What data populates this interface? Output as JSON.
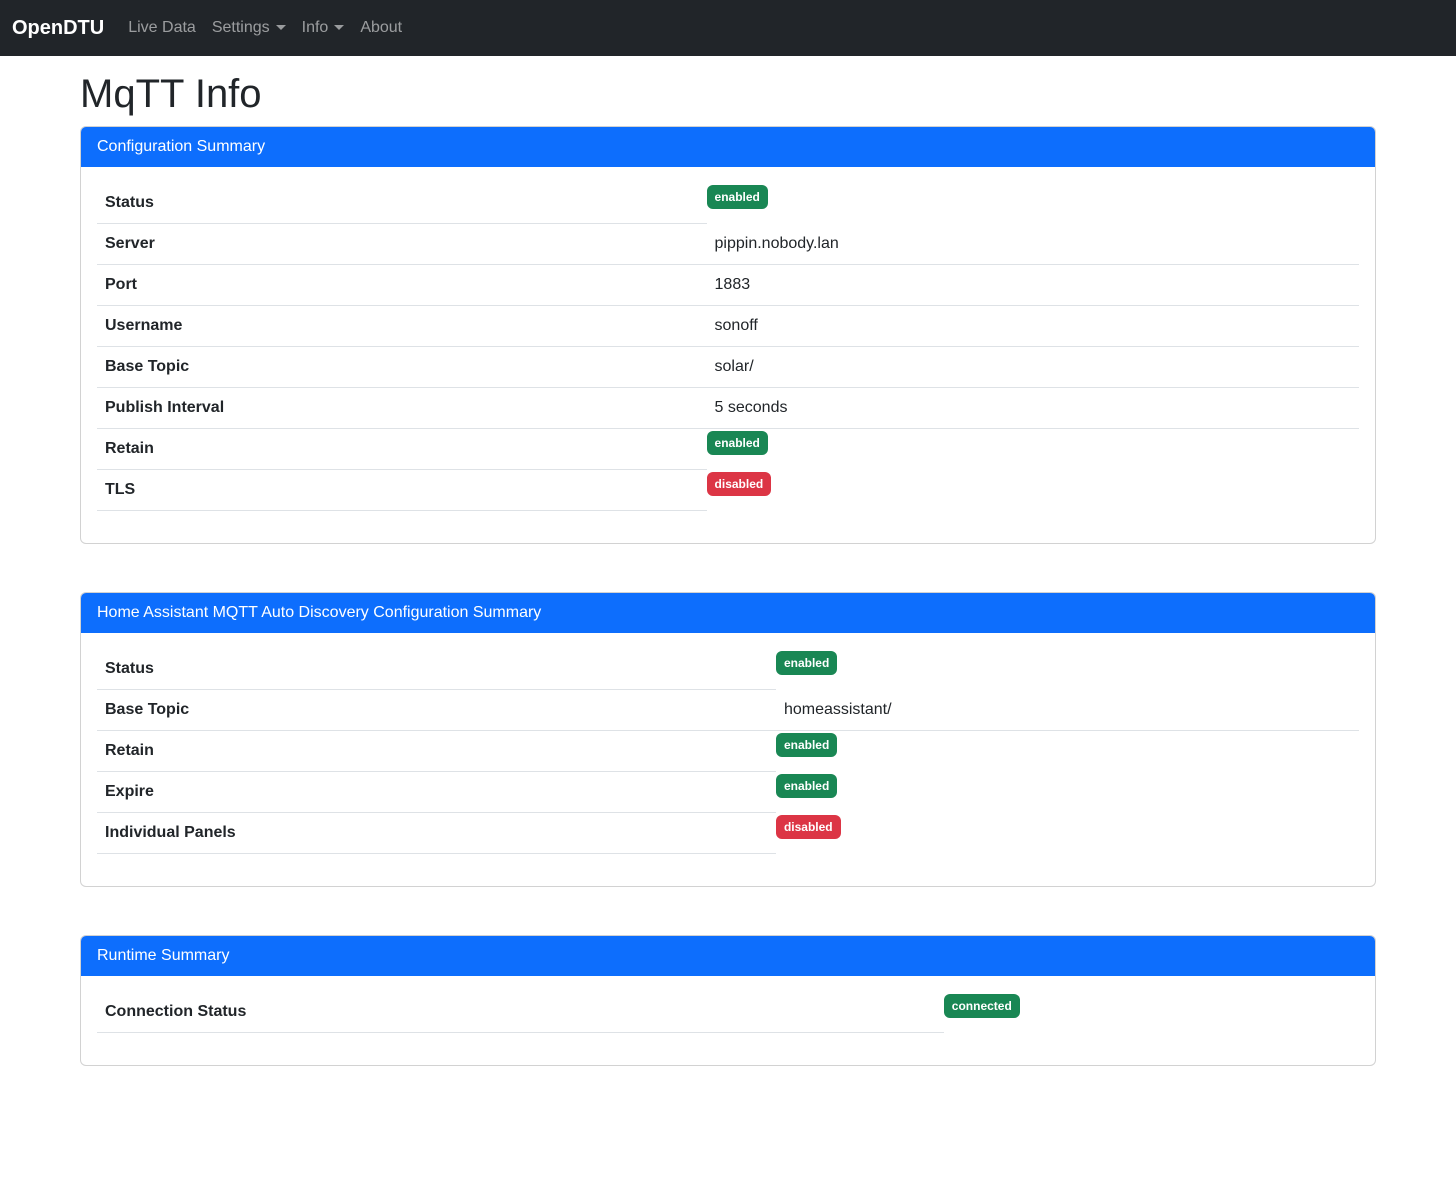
{
  "navbar": {
    "brand": "OpenDTU",
    "items": [
      {
        "label": "Live Data",
        "has_dropdown": false
      },
      {
        "label": "Settings",
        "has_dropdown": true
      },
      {
        "label": "Info",
        "has_dropdown": true
      },
      {
        "label": "About",
        "has_dropdown": false
      }
    ]
  },
  "page_title": "MqTT Info",
  "colors": {
    "navbar_bg": "#212529",
    "primary": "#0d6efd",
    "success": "#198754",
    "danger": "#dc3545",
    "table_border": "#dee2e6"
  },
  "cards": [
    {
      "title": "Configuration Summary",
      "rows": [
        {
          "label": "Status",
          "type": "badge",
          "value": "enabled",
          "variant": "success"
        },
        {
          "label": "Server",
          "type": "text",
          "value": "pippin.nobody.lan"
        },
        {
          "label": "Port",
          "type": "text",
          "value": "1883"
        },
        {
          "label": "Username",
          "type": "text",
          "value": "sonoff"
        },
        {
          "label": "Base Topic",
          "type": "text",
          "value": "solar/"
        },
        {
          "label": "Publish Interval",
          "type": "text",
          "value": "5 seconds"
        },
        {
          "label": "Retain",
          "type": "badge",
          "value": "enabled",
          "variant": "success"
        },
        {
          "label": "TLS",
          "type": "badge",
          "value": "disabled",
          "variant": "danger"
        }
      ]
    },
    {
      "title": "Home Assistant MQTT Auto Discovery Configuration Summary",
      "rows": [
        {
          "label": "Status",
          "type": "badge",
          "value": "enabled",
          "variant": "success"
        },
        {
          "label": "Base Topic",
          "type": "text",
          "value": "homeassistant/"
        },
        {
          "label": "Retain",
          "type": "badge",
          "value": "enabled",
          "variant": "success"
        },
        {
          "label": "Expire",
          "type": "badge",
          "value": "enabled",
          "variant": "success"
        },
        {
          "label": "Individual Panels",
          "type": "badge",
          "value": "disabled",
          "variant": "danger"
        }
      ]
    },
    {
      "title": "Runtime Summary",
      "rows": [
        {
          "label": "Connection Status",
          "type": "badge",
          "value": "connected",
          "variant": "success"
        }
      ]
    }
  ]
}
